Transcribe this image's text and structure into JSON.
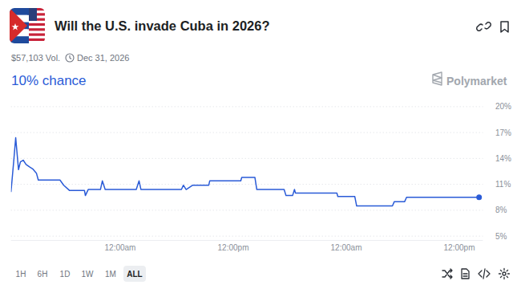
{
  "header": {
    "volume": "$57,103 Vol.",
    "end_date": "Dec 31, 2026",
    "headline": "10% chance",
    "brand": "Polymarket"
  },
  "chart_data": {
    "type": "line",
    "title": "Will the U.S. invade Cuba in 2026?",
    "color": "#2a5bd7",
    "x": [
      0.4,
      0.7,
      0.9,
      1.2,
      1.4,
      1.7,
      2.0,
      2.4,
      2.7,
      3.1,
      3.3,
      5.6,
      6.0,
      6.6,
      8.2,
      8.3,
      8.6,
      9.9,
      10.1,
      10.4,
      13.7,
      14.0,
      14.2,
      18.5,
      18.7,
      19.0,
      19.7,
      21.4,
      21.5,
      24.8,
      24.9,
      26.3,
      26.5,
      29.4,
      29.6,
      30.3,
      30.5,
      30.6,
      35.0,
      35.1,
      36.9,
      37.1,
      40.9,
      41.1,
      42.2,
      42.4,
      50.1
    ],
    "values": [
      10.1,
      13.8,
      16.4,
      12.7,
      13.6,
      13.8,
      13.3,
      13.0,
      12.8,
      12.3,
      11.5,
      11.5,
      10.9,
      10.3,
      10.3,
      9.7,
      10.4,
      10.4,
      11.4,
      10.4,
      10.4,
      11.4,
      10.4,
      10.4,
      10.9,
      10.4,
      10.9,
      10.9,
      11.4,
      11.4,
      11.8,
      11.8,
      10.4,
      10.4,
      9.7,
      9.7,
      10.4,
      10.0,
      10.0,
      9.6,
      9.6,
      8.5,
      8.5,
      9.0,
      9.0,
      9.5,
      9.5
    ],
    "xlim": [
      0.4,
      50.5
    ],
    "xticks": [
      {
        "value": 12,
        "label": "12:00am"
      },
      {
        "value": 24,
        "label": "12:00pm"
      },
      {
        "value": 36,
        "label": "12:00am"
      },
      {
        "value": 48,
        "label": "12:00pm"
      }
    ],
    "ylim": [
      4.5,
      20.5
    ],
    "yticks": [
      {
        "value": 5,
        "label": "5%"
      },
      {
        "value": 8,
        "label": "8%"
      },
      {
        "value": 11,
        "label": "11%"
      },
      {
        "value": 14,
        "label": "14%"
      },
      {
        "value": 17,
        "label": "17%"
      },
      {
        "value": 20,
        "label": "20%"
      }
    ],
    "grid": true
  },
  "footer": {
    "ranges": [
      "1H",
      "6H",
      "1D",
      "1W",
      "1M",
      "ALL"
    ]
  }
}
